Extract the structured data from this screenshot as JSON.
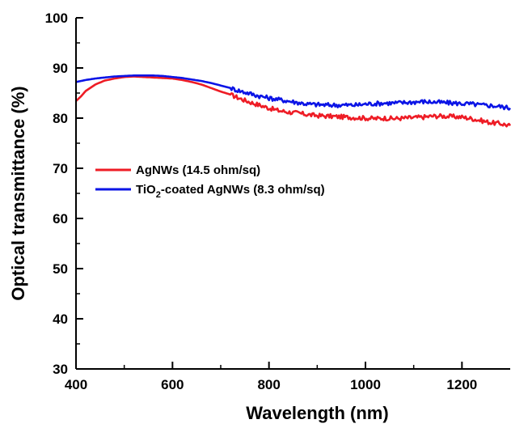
{
  "chart_data": {
    "type": "line",
    "xlabel": "Wavelength (nm)",
    "ylabel": "Optical transmittance (%)",
    "xlim": [
      400,
      1300
    ],
    "ylim": [
      30,
      100
    ],
    "x_ticks": [
      "400",
      "600",
      "800",
      "1000",
      "1200"
    ],
    "y_ticks": [
      "30",
      "40",
      "50",
      "60",
      "70",
      "80",
      "90",
      "100"
    ],
    "grid": false,
    "legend_position": "center-left",
    "series": [
      {
        "name": "AgNWs  (14.5 ohm/sq)",
        "name_parts": [
          "AgNWs  (14.5 ohm/sq)"
        ],
        "color": "#ee1c25",
        "x": [
          400,
          410,
          420,
          440,
          460,
          480,
          500,
          520,
          540,
          560,
          580,
          600,
          620,
          640,
          660,
          680,
          700,
          720,
          740,
          760,
          780,
          800,
          820,
          840,
          860,
          880,
          900,
          920,
          940,
          960,
          980,
          1000,
          1020,
          1040,
          1060,
          1080,
          1100,
          1120,
          1140,
          1160,
          1180,
          1200,
          1220,
          1240,
          1260,
          1280,
          1300
        ],
        "values": [
          83.4,
          84.3,
          85.4,
          86.7,
          87.5,
          87.9,
          88.2,
          88.3,
          88.2,
          88.1,
          88.0,
          87.9,
          87.6,
          87.2,
          86.7,
          86.0,
          85.3,
          84.7,
          83.9,
          83.2,
          82.6,
          82.0,
          81.5,
          81.2,
          81.0,
          80.7,
          80.5,
          80.4,
          80.3,
          80.2,
          80.1,
          80.0,
          79.9,
          80.0,
          79.9,
          80.0,
          80.1,
          80.2,
          80.4,
          80.4,
          80.3,
          80.2,
          79.9,
          79.5,
          79.1,
          78.9,
          78.5
        ]
      },
      {
        "name": "TiO2-coated AgNWs (8.3 ohm/sq)",
        "name_parts": [
          "TiO",
          "2",
          "-coated AgNWs (8.3 ohm/sq)"
        ],
        "color": "#0b14e6",
        "x": [
          400,
          410,
          420,
          440,
          460,
          480,
          500,
          520,
          540,
          560,
          580,
          600,
          620,
          640,
          660,
          680,
          700,
          720,
          740,
          760,
          780,
          800,
          820,
          840,
          860,
          880,
          900,
          920,
          940,
          960,
          980,
          1000,
          1020,
          1040,
          1060,
          1080,
          1100,
          1120,
          1140,
          1160,
          1180,
          1200,
          1220,
          1240,
          1260,
          1280,
          1300
        ],
        "values": [
          87.2,
          87.4,
          87.6,
          87.9,
          88.1,
          88.3,
          88.4,
          88.5,
          88.5,
          88.5,
          88.4,
          88.2,
          88.0,
          87.7,
          87.4,
          87.0,
          86.5,
          86.0,
          85.4,
          84.9,
          84.4,
          84.0,
          83.7,
          83.4,
          83.1,
          82.8,
          82.7,
          82.6,
          82.6,
          82.6,
          82.6,
          82.8,
          82.9,
          83.0,
          83.0,
          83.1,
          83.2,
          83.3,
          83.2,
          83.1,
          83.0,
          82.9,
          82.8,
          82.6,
          82.5,
          82.3,
          82.0
        ]
      }
    ]
  }
}
